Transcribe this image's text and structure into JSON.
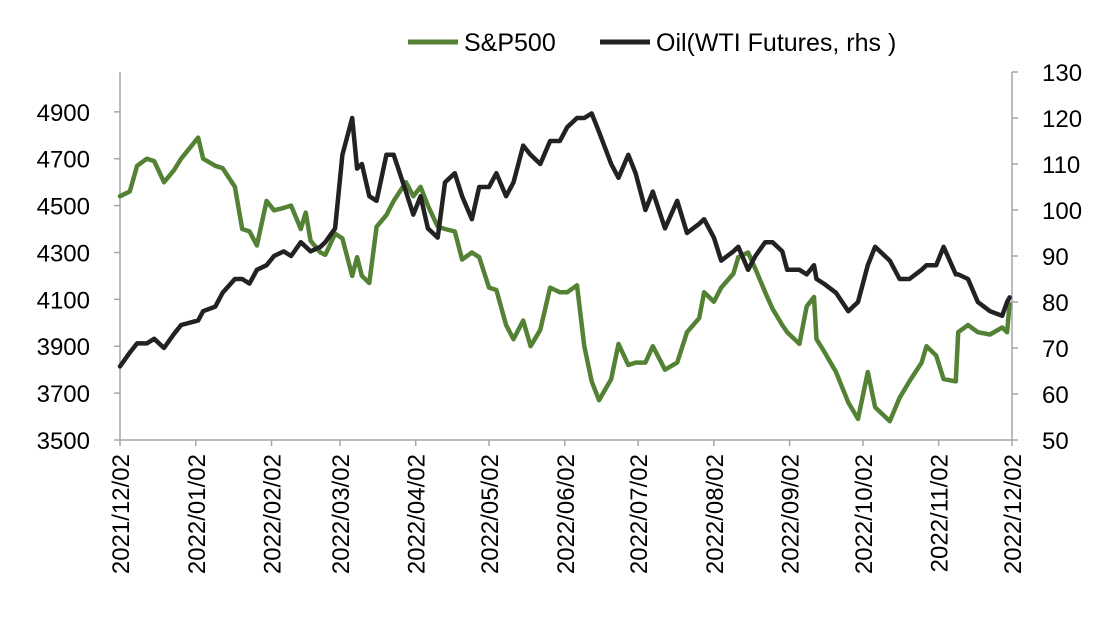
{
  "chart_data": {
    "type": "line",
    "title": "",
    "legend_position": "top",
    "grid": false,
    "x_ticks": [
      "2021/12/02",
      "2022/01/02",
      "2022/02/02",
      "2022/03/02",
      "2022/04/02",
      "2022/05/02",
      "2022/06/02",
      "2022/07/02",
      "2022/08/02",
      "2022/09/02",
      "2022/10/02",
      "2022/11/02",
      "2022/12/02"
    ],
    "y_left": {
      "ticks": [
        3500,
        3700,
        3900,
        4100,
        4300,
        4500,
        4700,
        4900
      ],
      "range": [
        3500,
        5070
      ]
    },
    "y_right": {
      "ticks": [
        50,
        60,
        70,
        80,
        90,
        100,
        110,
        120,
        130
      ],
      "range": [
        50,
        130
      ],
      "label": "rhs"
    },
    "series": [
      {
        "name": "S&P500",
        "axis": "left",
        "color": "#548235",
        "points": [
          [
            "2021-12-02",
            4540
          ],
          [
            "2021-12-06",
            4560
          ],
          [
            "2021-12-09",
            4670
          ],
          [
            "2021-12-13",
            4700
          ],
          [
            "2021-12-16",
            4690
          ],
          [
            "2021-12-20",
            4600
          ],
          [
            "2021-12-24",
            4650
          ],
          [
            "2021-12-27",
            4700
          ],
          [
            "2022-01-03",
            4790
          ],
          [
            "2022-01-05",
            4700
          ],
          [
            "2022-01-10",
            4670
          ],
          [
            "2022-01-13",
            4660
          ],
          [
            "2022-01-18",
            4580
          ],
          [
            "2022-01-21",
            4400
          ],
          [
            "2022-01-24",
            4390
          ],
          [
            "2022-01-27",
            4330
          ],
          [
            "2022-01-31",
            4520
          ],
          [
            "2022-02-03",
            4480
          ],
          [
            "2022-02-07",
            4490
          ],
          [
            "2022-02-10",
            4500
          ],
          [
            "2022-02-14",
            4400
          ],
          [
            "2022-02-16",
            4470
          ],
          [
            "2022-02-18",
            4350
          ],
          [
            "2022-02-22",
            4300
          ],
          [
            "2022-02-24",
            4290
          ],
          [
            "2022-02-28",
            4380
          ],
          [
            "2022-03-03",
            4360
          ],
          [
            "2022-03-07",
            4200
          ],
          [
            "2022-03-09",
            4280
          ],
          [
            "2022-03-11",
            4200
          ],
          [
            "2022-03-14",
            4170
          ],
          [
            "2022-03-17",
            4410
          ],
          [
            "2022-03-21",
            4460
          ],
          [
            "2022-03-24",
            4520
          ],
          [
            "2022-03-29",
            4600
          ],
          [
            "2022-04-01",
            4540
          ],
          [
            "2022-04-04",
            4580
          ],
          [
            "2022-04-07",
            4500
          ],
          [
            "2022-04-11",
            4410
          ],
          [
            "2022-04-14",
            4400
          ],
          [
            "2022-04-18",
            4390
          ],
          [
            "2022-04-21",
            4270
          ],
          [
            "2022-04-25",
            4300
          ],
          [
            "2022-04-28",
            4280
          ],
          [
            "2022-05-02",
            4150
          ],
          [
            "2022-05-05",
            4140
          ],
          [
            "2022-05-09",
            3990
          ],
          [
            "2022-05-12",
            3930
          ],
          [
            "2022-05-16",
            4010
          ],
          [
            "2022-05-19",
            3900
          ],
          [
            "2022-05-23",
            3970
          ],
          [
            "2022-05-27",
            4150
          ],
          [
            "2022-05-31",
            4130
          ],
          [
            "2022-06-03",
            4130
          ],
          [
            "2022-06-07",
            4160
          ],
          [
            "2022-06-10",
            3900
          ],
          [
            "2022-06-13",
            3750
          ],
          [
            "2022-06-16",
            3670
          ],
          [
            "2022-06-21",
            3760
          ],
          [
            "2022-06-24",
            3910
          ],
          [
            "2022-06-28",
            3820
          ],
          [
            "2022-07-01",
            3830
          ],
          [
            "2022-07-05",
            3830
          ],
          [
            "2022-07-08",
            3900
          ],
          [
            "2022-07-13",
            3800
          ],
          [
            "2022-07-18",
            3830
          ],
          [
            "2022-07-22",
            3960
          ],
          [
            "2022-07-27",
            4020
          ],
          [
            "2022-07-29",
            4130
          ],
          [
            "2022-08-02",
            4090
          ],
          [
            "2022-08-05",
            4150
          ],
          [
            "2022-08-10",
            4210
          ],
          [
            "2022-08-12",
            4280
          ],
          [
            "2022-08-16",
            4300
          ],
          [
            "2022-08-19",
            4230
          ],
          [
            "2022-08-23",
            4130
          ],
          [
            "2022-08-26",
            4060
          ],
          [
            "2022-08-30",
            3990
          ],
          [
            "2022-09-01",
            3960
          ],
          [
            "2022-09-06",
            3910
          ],
          [
            "2022-09-09",
            4070
          ],
          [
            "2022-09-12",
            4110
          ],
          [
            "2022-09-13",
            3930
          ],
          [
            "2022-09-16",
            3880
          ],
          [
            "2022-09-21",
            3790
          ],
          [
            "2022-09-26",
            3660
          ],
          [
            "2022-09-30",
            3590
          ],
          [
            "2022-10-04",
            3790
          ],
          [
            "2022-10-07",
            3640
          ],
          [
            "2022-10-13",
            3580
          ],
          [
            "2022-10-17",
            3680
          ],
          [
            "2022-10-21",
            3750
          ],
          [
            "2022-10-26",
            3830
          ],
          [
            "2022-10-28",
            3900
          ],
          [
            "2022-11-01",
            3860
          ],
          [
            "2022-11-04",
            3760
          ],
          [
            "2022-11-09",
            3750
          ],
          [
            "2022-11-10",
            3960
          ],
          [
            "2022-11-14",
            3990
          ],
          [
            "2022-11-18",
            3960
          ],
          [
            "2022-11-23",
            3950
          ],
          [
            "2022-11-28",
            3980
          ],
          [
            "2022-11-30",
            3960
          ],
          [
            "2022-12-01",
            4080
          ]
        ]
      },
      {
        "name": "Oil(WTI Futures, rhs )",
        "axis": "right",
        "color": "#222222",
        "points": [
          [
            "2021-12-02",
            66
          ],
          [
            "2021-12-06",
            69
          ],
          [
            "2021-12-09",
            71
          ],
          [
            "2021-12-13",
            71
          ],
          [
            "2021-12-16",
            72
          ],
          [
            "2021-12-20",
            70
          ],
          [
            "2021-12-24",
            73
          ],
          [
            "2021-12-27",
            75
          ],
          [
            "2022-01-03",
            76
          ],
          [
            "2022-01-05",
            78
          ],
          [
            "2022-01-10",
            79
          ],
          [
            "2022-01-13",
            82
          ],
          [
            "2022-01-18",
            85
          ],
          [
            "2022-01-21",
            85
          ],
          [
            "2022-01-24",
            84
          ],
          [
            "2022-01-27",
            87
          ],
          [
            "2022-01-31",
            88
          ],
          [
            "2022-02-03",
            90
          ],
          [
            "2022-02-07",
            91
          ],
          [
            "2022-02-10",
            90
          ],
          [
            "2022-02-14",
            93
          ],
          [
            "2022-02-16",
            92
          ],
          [
            "2022-02-18",
            91
          ],
          [
            "2022-02-22",
            92
          ],
          [
            "2022-02-24",
            93
          ],
          [
            "2022-02-28",
            96
          ],
          [
            "2022-03-03",
            112
          ],
          [
            "2022-03-07",
            120
          ],
          [
            "2022-03-09",
            109
          ],
          [
            "2022-03-11",
            110
          ],
          [
            "2022-03-14",
            103
          ],
          [
            "2022-03-17",
            102
          ],
          [
            "2022-03-21",
            112
          ],
          [
            "2022-03-24",
            112
          ],
          [
            "2022-03-29",
            104
          ],
          [
            "2022-04-01",
            99
          ],
          [
            "2022-04-04",
            103
          ],
          [
            "2022-04-07",
            96
          ],
          [
            "2022-04-11",
            94
          ],
          [
            "2022-04-14",
            106
          ],
          [
            "2022-04-18",
            108
          ],
          [
            "2022-04-21",
            103
          ],
          [
            "2022-04-25",
            98
          ],
          [
            "2022-04-28",
            105
          ],
          [
            "2022-05-02",
            105
          ],
          [
            "2022-05-05",
            108
          ],
          [
            "2022-05-09",
            103
          ],
          [
            "2022-05-12",
            106
          ],
          [
            "2022-05-16",
            114
          ],
          [
            "2022-05-19",
            112
          ],
          [
            "2022-05-23",
            110
          ],
          [
            "2022-05-27",
            115
          ],
          [
            "2022-05-31",
            115
          ],
          [
            "2022-06-03",
            118
          ],
          [
            "2022-06-07",
            120
          ],
          [
            "2022-06-10",
            120
          ],
          [
            "2022-06-13",
            121
          ],
          [
            "2022-06-16",
            117
          ],
          [
            "2022-06-21",
            110
          ],
          [
            "2022-06-24",
            107
          ],
          [
            "2022-06-28",
            112
          ],
          [
            "2022-07-01",
            108
          ],
          [
            "2022-07-05",
            100
          ],
          [
            "2022-07-08",
            104
          ],
          [
            "2022-07-13",
            96
          ],
          [
            "2022-07-18",
            102
          ],
          [
            "2022-07-22",
            95
          ],
          [
            "2022-07-27",
            97
          ],
          [
            "2022-07-29",
            98
          ],
          [
            "2022-08-02",
            94
          ],
          [
            "2022-08-05",
            89
          ],
          [
            "2022-08-10",
            91
          ],
          [
            "2022-08-12",
            92
          ],
          [
            "2022-08-16",
            87
          ],
          [
            "2022-08-19",
            90
          ],
          [
            "2022-08-23",
            93
          ],
          [
            "2022-08-26",
            93
          ],
          [
            "2022-08-30",
            91
          ],
          [
            "2022-09-01",
            87
          ],
          [
            "2022-09-06",
            87
          ],
          [
            "2022-09-09",
            86
          ],
          [
            "2022-09-12",
            88
          ],
          [
            "2022-09-13",
            85
          ],
          [
            "2022-09-16",
            84
          ],
          [
            "2022-09-21",
            82
          ],
          [
            "2022-09-26",
            78
          ],
          [
            "2022-09-30",
            80
          ],
          [
            "2022-10-04",
            88
          ],
          [
            "2022-10-07",
            92
          ],
          [
            "2022-10-13",
            89
          ],
          [
            "2022-10-17",
            85
          ],
          [
            "2022-10-21",
            85
          ],
          [
            "2022-10-26",
            87
          ],
          [
            "2022-10-28",
            88
          ],
          [
            "2022-11-01",
            88
          ],
          [
            "2022-11-04",
            92
          ],
          [
            "2022-11-09",
            86
          ],
          [
            "2022-11-10",
            86
          ],
          [
            "2022-11-14",
            85
          ],
          [
            "2022-11-18",
            80
          ],
          [
            "2022-11-23",
            78
          ],
          [
            "2022-11-28",
            77
          ],
          [
            "2022-11-30",
            80
          ],
          [
            "2022-12-01",
            81
          ]
        ]
      }
    ]
  }
}
